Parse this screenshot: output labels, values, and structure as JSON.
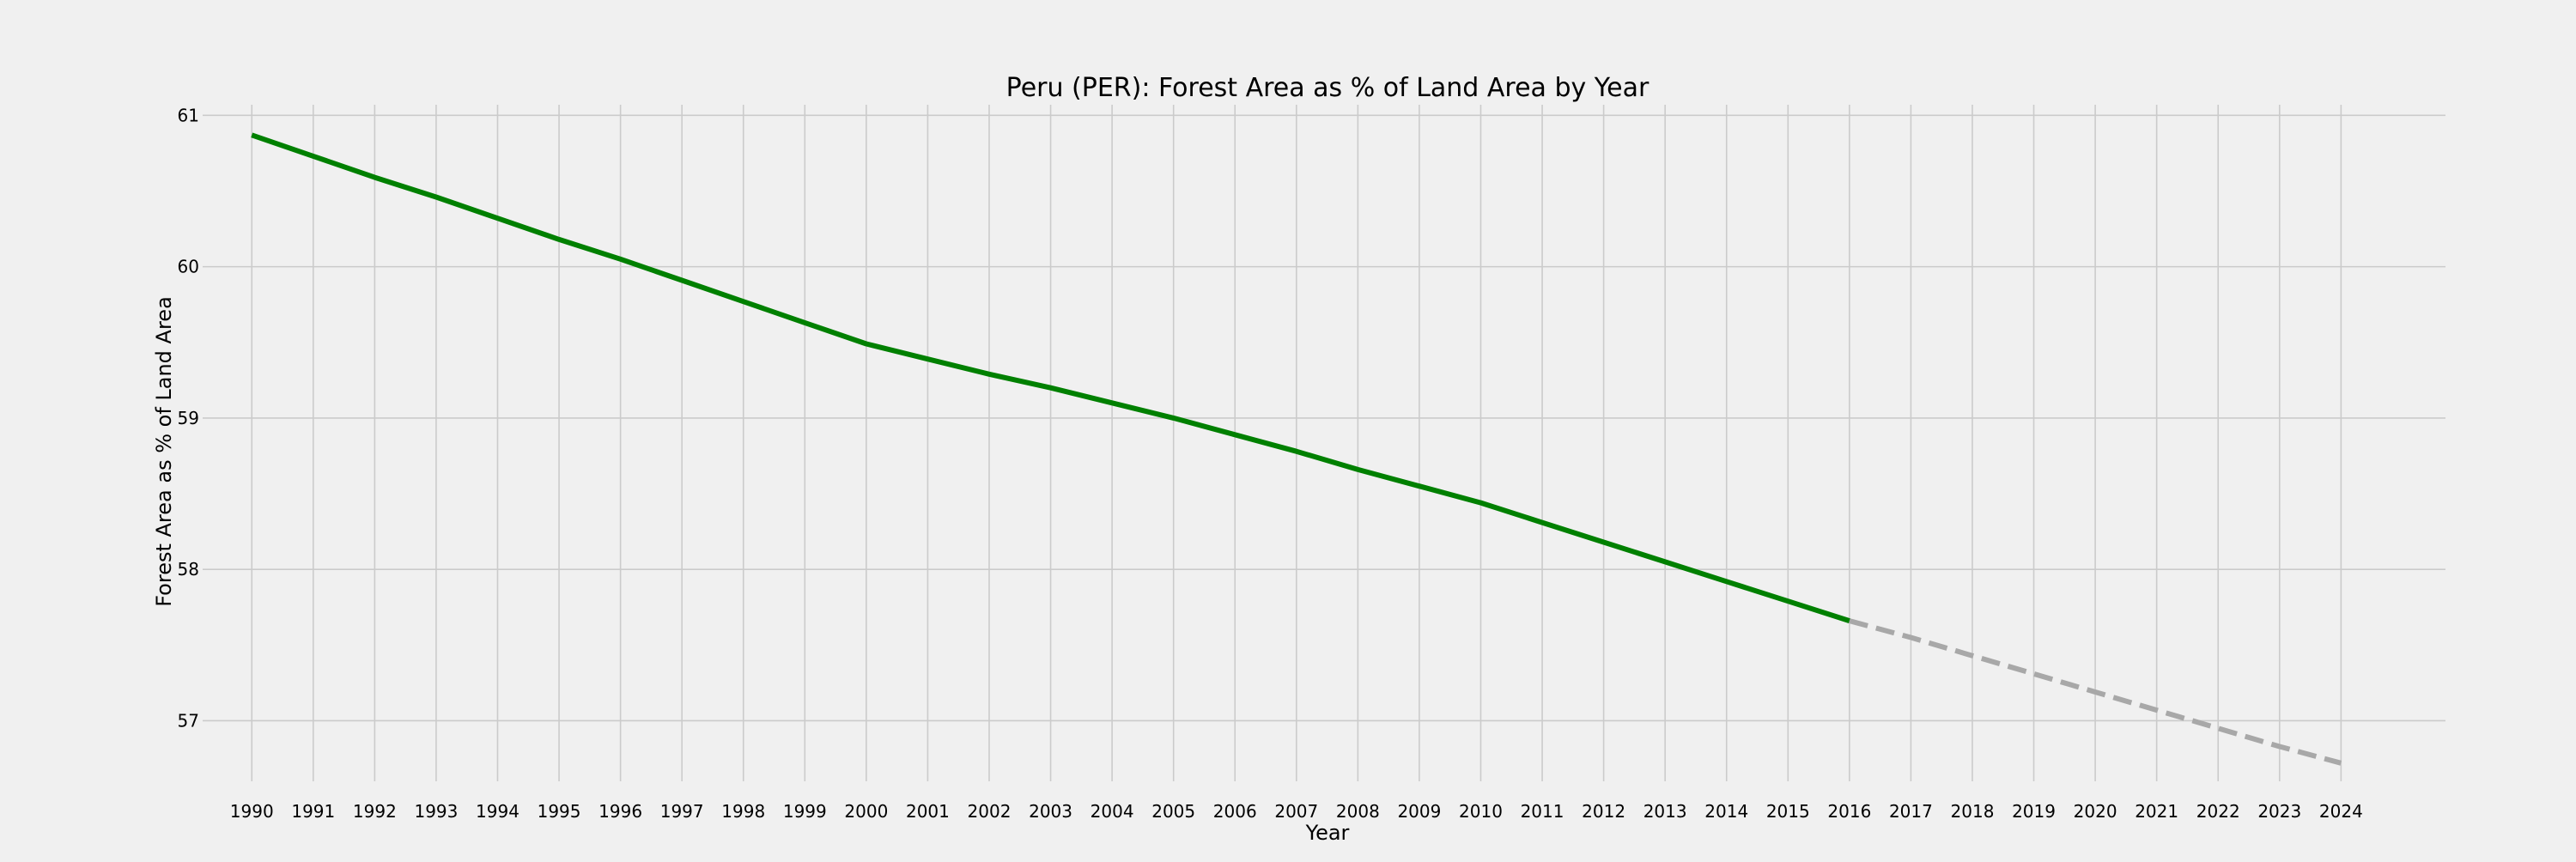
{
  "chart_data": {
    "type": "line",
    "title": "Peru (PER): Forest Area as % of Land Area by Year",
    "xlabel": "Year",
    "ylabel": "Forest Area as % of Land Area",
    "x_ticks": [
      1990,
      1991,
      1992,
      1993,
      1994,
      1995,
      1996,
      1997,
      1998,
      1999,
      2000,
      2001,
      2002,
      2003,
      2004,
      2005,
      2006,
      2007,
      2008,
      2009,
      2010,
      2011,
      2012,
      2013,
      2014,
      2015,
      2016,
      2017,
      2018,
      2019,
      2020,
      2021,
      2022,
      2023,
      2024
    ],
    "y_ticks": [
      57,
      58,
      59,
      60,
      61
    ],
    "xlim": [
      1989.2,
      2025.7
    ],
    "ylim": [
      56.6,
      61.07
    ],
    "grid": true,
    "series": [
      {
        "style": "solid",
        "color": "#008000",
        "points": [
          [
            1990,
            60.87
          ],
          [
            1991,
            60.73
          ],
          [
            1992,
            60.59
          ],
          [
            1993,
            60.46
          ],
          [
            1994,
            60.32
          ],
          [
            1995,
            60.18
          ],
          [
            1996,
            60.05
          ],
          [
            1997,
            59.91
          ],
          [
            1998,
            59.77
          ],
          [
            1999,
            59.63
          ],
          [
            2000,
            59.49
          ],
          [
            2001,
            59.39
          ],
          [
            2002,
            59.29
          ],
          [
            2003,
            59.2
          ],
          [
            2004,
            59.1
          ],
          [
            2005,
            59.0
          ],
          [
            2006,
            58.89
          ],
          [
            2007,
            58.78
          ],
          [
            2008,
            58.66
          ],
          [
            2009,
            58.55
          ],
          [
            2010,
            58.44
          ],
          [
            2011,
            58.31
          ],
          [
            2012,
            58.18
          ],
          [
            2013,
            58.05
          ],
          [
            2014,
            57.92
          ],
          [
            2015,
            57.79
          ],
          [
            2016,
            57.66
          ]
        ]
      },
      {
        "style": "dashed",
        "color": "#a8a8a8",
        "points": [
          [
            2016,
            57.66
          ],
          [
            2017,
            57.55
          ],
          [
            2018,
            57.43
          ],
          [
            2019,
            57.31
          ],
          [
            2020,
            57.19
          ],
          [
            2021,
            57.07
          ],
          [
            2022,
            56.95
          ],
          [
            2023,
            56.83
          ],
          [
            2024,
            56.72
          ]
        ]
      }
    ]
  }
}
